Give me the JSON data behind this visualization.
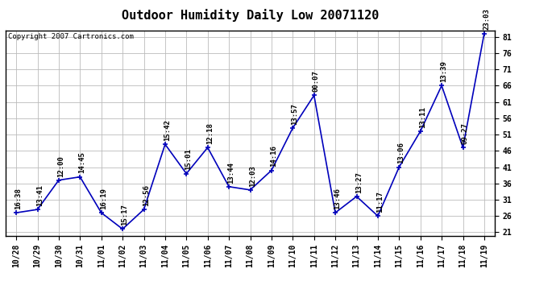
{
  "title": "Outdoor Humidity Daily Low 20071120",
  "copyright": "Copyright 2007 Cartronics.com",
  "x_labels": [
    "10/28",
    "10/29",
    "10/30",
    "10/31",
    "11/01",
    "11/02",
    "11/03",
    "11/04",
    "11/05",
    "11/06",
    "11/07",
    "11/08",
    "11/09",
    "11/10",
    "11/11",
    "11/12",
    "11/13",
    "11/14",
    "11/15",
    "11/16",
    "11/17",
    "11/18",
    "11/19"
  ],
  "y_values": [
    27,
    28,
    37,
    38,
    27,
    22,
    28,
    48,
    39,
    47,
    35,
    34,
    40,
    53,
    63,
    27,
    32,
    26,
    41,
    52,
    66,
    47,
    82
  ],
  "point_labels": [
    "16:38",
    "13:41",
    "12:00",
    "14:45",
    "16:19",
    "15:17",
    "12:56",
    "15:42",
    "15:01",
    "12:18",
    "13:44",
    "12:03",
    "14:16",
    "13:57",
    "00:07",
    "13:46",
    "13:27",
    "11:17",
    "13:06",
    "13:11",
    "13:39",
    "09:27",
    "23:03"
  ],
  "ylim_min": 20,
  "ylim_max": 83,
  "y_ticks": [
    21,
    26,
    31,
    36,
    41,
    46,
    51,
    56,
    61,
    66,
    71,
    76,
    81
  ],
  "line_color": "#0000BB",
  "marker_color": "#0000BB",
  "bg_color": "#FFFFFF",
  "plot_bg_color": "#FFFFFF",
  "grid_color": "#BBBBBB",
  "title_fontsize": 11,
  "label_fontsize": 6.5,
  "tick_fontsize": 7,
  "copyright_fontsize": 6.5
}
